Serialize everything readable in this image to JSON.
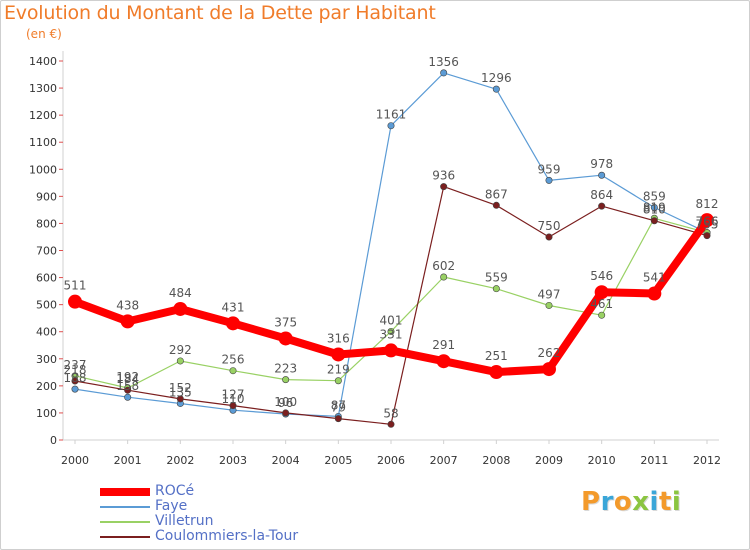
{
  "header": {
    "title": "Evolution du Montant de la Dette par Habitant",
    "subtitle": "(en €)"
  },
  "brand": {
    "text": "Proxiti",
    "letter_colors": [
      "#f39a2b",
      "#3aa6d8",
      "#f39a2b",
      "#8bc540",
      "#3aa6d8",
      "#f39a2b",
      "#8bc540"
    ]
  },
  "chart_data": {
    "type": "line",
    "title": "Evolution du Montant de la Dette par Habitant",
    "subtitle": "(en €)",
    "x": [
      "2000",
      "2001",
      "2002",
      "2003",
      "2004",
      "2005",
      "2006",
      "2007",
      "2008",
      "2009",
      "2010",
      "2011",
      "2012"
    ],
    "y_ticks": [
      "0",
      "100",
      "200",
      "300",
      "400",
      "500",
      "600",
      "700",
      "800",
      "900",
      "1000",
      "1100",
      "1200",
      "1300",
      "1400"
    ],
    "ylim": [
      0,
      1400
    ],
    "grid": false,
    "legend_position": "bottom-left",
    "series": [
      {
        "name": "Faye",
        "color": "#5b9bd5",
        "values": [
          188,
          158,
          135,
          110,
          96,
          87,
          1161,
          1356,
          1296,
          959,
          978,
          859,
          766
        ],
        "labels": [
          "188",
          "158",
          "135",
          "110",
          "96",
          "87",
          "1161",
          "1356",
          "1296",
          "959",
          "978",
          "859",
          "766"
        ]
      },
      {
        "name": "Villetrun",
        "color": "#99d164",
        "values": [
          237,
          192,
          292,
          256,
          223,
          219,
          401,
          602,
          559,
          497,
          461,
          819,
          766
        ],
        "labels": [
          "237",
          "192",
          "292",
          "256",
          "223",
          "219",
          "401",
          "602",
          "559",
          "497",
          "461",
          "819",
          "766"
        ]
      },
      {
        "name": "Coulommiers-la-Tour",
        "color": "#7b1f1f",
        "values": [
          218,
          184,
          152,
          127,
          100,
          79,
          58,
          936,
          867,
          750,
          864,
          810,
          755
        ],
        "labels": [
          "218",
          "184",
          "152",
          "127",
          "100",
          "79",
          "58",
          "936",
          "867",
          "750",
          "864",
          "810",
          "755"
        ]
      },
      {
        "name": "ROCé",
        "color": "#ff0000",
        "values": [
          511,
          438,
          484,
          431,
          375,
          316,
          331,
          291,
          251,
          262,
          546,
          541,
          812
        ],
        "labels": [
          "511",
          "438",
          "484",
          "431",
          "375",
          "316",
          "331",
          "291",
          "251",
          "262",
          "546",
          "541",
          "812"
        ]
      }
    ],
    "legend": [
      "ROCé",
      "Faye",
      "Villetrun",
      "Coulommiers-la-Tour"
    ]
  }
}
